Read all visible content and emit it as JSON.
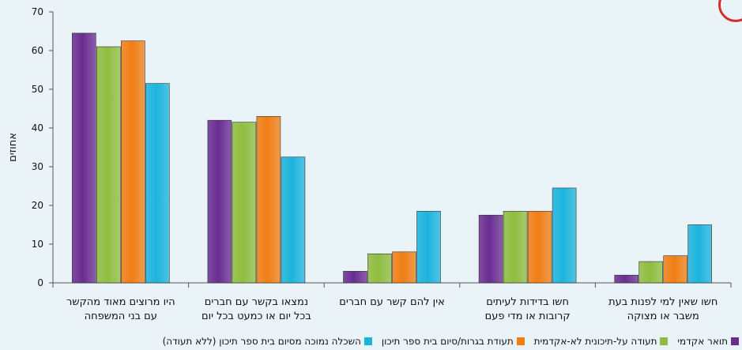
{
  "chart_data": {
    "type": "bar",
    "ylabel": "אחוזים",
    "ylim": [
      0,
      70
    ],
    "yticks": [
      0,
      10,
      20,
      30,
      40,
      50,
      60,
      70
    ],
    "categories": [
      [
        "היו מרוצים מאוד מהקשר",
        "עם בני המשפחה"
      ],
      [
        "נמצאו בקשר עם חברים",
        "בכל יום או כמעט בכל יום"
      ],
      [
        "אין להם קשר עם חברים"
      ],
      [
        "חשו בדידות לעיתים",
        "קרובות או מדי פעם"
      ],
      [
        "חשו שאין למי לפנות בעת",
        "משבר או מצוקה"
      ]
    ],
    "series": [
      {
        "name": "תואר אקדמי",
        "color": "#6a2d91",
        "values": [
          64.5,
          42,
          3,
          17.5,
          2
        ]
      },
      {
        "name": "תעודה על-תיכונית לא-אקדמית",
        "color": "#8fbd3f",
        "values": [
          61,
          41.5,
          7.5,
          18.5,
          5.5
        ]
      },
      {
        "name": "תעודת בגרות/סיום בית ספר תיכון",
        "color": "#f07e14",
        "values": [
          62.5,
          43,
          8,
          18.5,
          7
        ]
      },
      {
        "name": "השכלה נמוכה מסיום בית ספר תיכון (ללא תעודה)",
        "color": "#1cb4dc",
        "values": [
          51.5,
          32.5,
          18.5,
          24.5,
          15
        ]
      }
    ],
    "legend_position": "bottom",
    "grid": false
  }
}
